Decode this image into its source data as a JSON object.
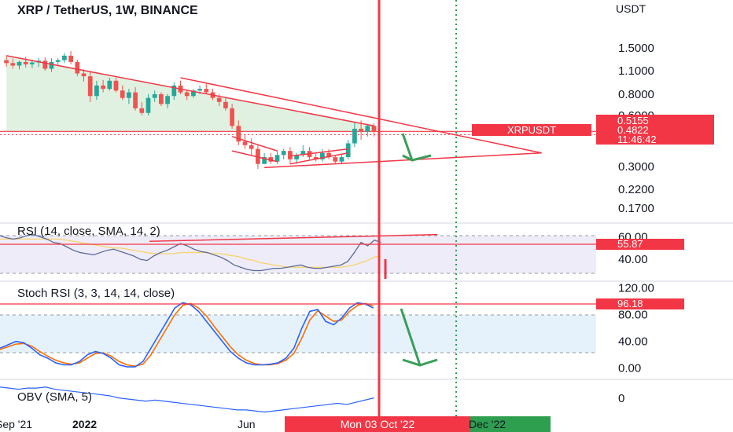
{
  "header": {
    "symbol_title": "XRP / TetherUS, 1W, BINANCE",
    "currency": "USDT"
  },
  "colors": {
    "up": "#26a69a",
    "down": "#ef5350",
    "accent_red": "#f23645",
    "rsi_line": "#5b6a9a",
    "rsi_sma": "#f5d46a",
    "stoch_k": "#2962ff",
    "stoch_d": "#ff6d00",
    "obv_line": "#2962ff",
    "green_dotted": "#2e9e4f",
    "rsi_band": "#e8e4f6",
    "stoch_band": "#e3f1fb"
  },
  "chart_data": [
    {
      "type": "candlestick",
      "title": "XRP / TetherUS, 1W, BINANCE",
      "ylabel": "USDT",
      "y_scale": "log",
      "y_ticks": [
        "1.5000",
        "1.1000",
        "0.8000",
        "0.6000",
        "0.3000",
        "0.2200",
        "0.1700"
      ],
      "x_ticks": [
        "Sep '21",
        "2022",
        "Jun",
        "Dec '22"
      ],
      "hover_x": "Mon 03 Oct '22",
      "symbol_tag": "XRPUSDT",
      "price_tags": [
        "0.5155",
        "0.4822",
        "11:46:42"
      ],
      "candles_ohlc": [
        [
          1.27,
          1.34,
          1.16,
          1.22
        ],
        [
          1.22,
          1.3,
          1.13,
          1.18
        ],
        [
          1.18,
          1.26,
          1.12,
          1.24
        ],
        [
          1.24,
          1.33,
          1.15,
          1.2
        ],
        [
          1.2,
          1.28,
          1.14,
          1.23
        ],
        [
          1.23,
          1.31,
          1.16,
          1.26
        ],
        [
          1.26,
          1.32,
          1.1,
          1.13
        ],
        [
          1.13,
          1.3,
          1.08,
          1.24
        ],
        [
          1.24,
          1.3,
          1.18,
          1.27
        ],
        [
          1.27,
          1.4,
          1.22,
          1.35
        ],
        [
          1.35,
          1.44,
          1.2,
          1.24
        ],
        [
          1.24,
          1.28,
          1.02,
          1.06
        ],
        [
          1.06,
          1.12,
          0.95,
          1.02
        ],
        [
          1.02,
          1.08,
          0.72,
          0.78
        ],
        [
          0.78,
          0.96,
          0.74,
          0.9
        ],
        [
          0.9,
          0.97,
          0.82,
          0.86
        ],
        [
          0.86,
          1.0,
          0.84,
          0.96
        ],
        [
          0.96,
          1.0,
          0.82,
          0.84
        ],
        [
          0.84,
          0.9,
          0.74,
          0.76
        ],
        [
          0.76,
          0.86,
          0.7,
          0.82
        ],
        [
          0.82,
          0.88,
          0.64,
          0.66
        ],
        [
          0.66,
          0.72,
          0.6,
          0.62
        ],
        [
          0.62,
          0.8,
          0.6,
          0.76
        ],
        [
          0.76,
          0.84,
          0.72,
          0.8
        ],
        [
          0.8,
          0.82,
          0.68,
          0.7
        ],
        [
          0.7,
          0.8,
          0.66,
          0.78
        ],
        [
          0.78,
          0.94,
          0.74,
          0.9
        ],
        [
          0.9,
          0.96,
          0.8,
          0.82
        ],
        [
          0.82,
          0.84,
          0.74,
          0.78
        ],
        [
          0.78,
          0.86,
          0.76,
          0.84
        ],
        [
          0.84,
          0.9,
          0.8,
          0.86
        ],
        [
          0.86,
          0.92,
          0.8,
          0.82
        ],
        [
          0.82,
          0.86,
          0.74,
          0.76
        ],
        [
          0.76,
          0.8,
          0.68,
          0.72
        ],
        [
          0.72,
          0.76,
          0.64,
          0.66
        ],
        [
          0.66,
          0.7,
          0.5,
          0.52
        ],
        [
          0.52,
          0.56,
          0.4,
          0.42
        ],
        [
          0.42,
          0.46,
          0.38,
          0.4
        ],
        [
          0.4,
          0.44,
          0.35,
          0.38
        ],
        [
          0.38,
          0.4,
          0.29,
          0.31
        ],
        [
          0.31,
          0.36,
          0.31,
          0.34
        ],
        [
          0.34,
          0.36,
          0.31,
          0.32
        ],
        [
          0.32,
          0.37,
          0.31,
          0.35
        ],
        [
          0.35,
          0.38,
          0.33,
          0.37
        ],
        [
          0.37,
          0.39,
          0.31,
          0.33
        ],
        [
          0.33,
          0.36,
          0.31,
          0.35
        ],
        [
          0.35,
          0.4,
          0.34,
          0.37
        ],
        [
          0.37,
          0.39,
          0.33,
          0.34
        ],
        [
          0.34,
          0.36,
          0.32,
          0.33
        ],
        [
          0.33,
          0.38,
          0.32,
          0.36
        ],
        [
          0.36,
          0.38,
          0.33,
          0.34
        ],
        [
          0.34,
          0.35,
          0.31,
          0.32
        ],
        [
          0.32,
          0.35,
          0.31,
          0.34
        ],
        [
          0.34,
          0.43,
          0.33,
          0.41
        ],
        [
          0.41,
          0.55,
          0.39,
          0.5
        ],
        [
          0.5,
          0.56,
          0.43,
          0.48
        ],
        [
          0.48,
          0.53,
          0.45,
          0.52
        ],
        [
          0.52,
          0.54,
          0.45,
          0.48
        ]
      ],
      "trendlines": [
        {
          "from": [
            0,
            1.35
          ],
          "to": [
            57,
            0.52
          ]
        },
        {
          "from": [
            27,
            1.0
          ],
          "to": [
            57,
            0.58
          ]
        },
        {
          "from": [
            57,
            0.58
          ],
          "to": [
            83,
            0.36
          ]
        },
        {
          "from": [
            40,
            0.295
          ],
          "to": [
            83,
            0.36
          ]
        },
        {
          "from": [
            35,
            0.45
          ],
          "to": [
            42,
            0.37
          ]
        },
        {
          "from": [
            35,
            0.37
          ],
          "to": [
            42,
            0.32
          ]
        },
        {
          "from": [
            44,
            0.31
          ],
          "to": [
            53,
            0.36
          ]
        },
        {
          "from": [
            44,
            0.345
          ],
          "to": [
            53,
            0.38
          ]
        }
      ],
      "support_level": 0.4822
    },
    {
      "type": "line",
      "title": "RSI (14, close, SMA, 14, 2)",
      "y_ticks": [
        "60.00",
        "40.00"
      ],
      "ylim": [
        22,
        68
      ],
      "band": [
        30,
        70
      ],
      "last_value_tag": "55.87",
      "series": [
        {
          "values": [
            61,
            59,
            58,
            59,
            61,
            62,
            60,
            58,
            55,
            54,
            51,
            48,
            46,
            45,
            44,
            46,
            48,
            49,
            47,
            45,
            43,
            40,
            39,
            43,
            46,
            48,
            51,
            54,
            52,
            49,
            47,
            46,
            44,
            42,
            39,
            35,
            33,
            31,
            30,
            30,
            31,
            32,
            32,
            33,
            34,
            35,
            33,
            32,
            32,
            33,
            34,
            35,
            38,
            46,
            55,
            52,
            57,
            55
          ]
        },
        {
          "values": [
            58,
            58,
            58,
            58,
            58,
            58,
            58,
            58,
            58,
            58,
            57,
            56,
            55,
            54,
            53,
            52,
            51,
            50,
            50,
            49,
            48,
            47,
            46,
            45,
            45,
            45,
            45,
            46,
            46,
            46,
            46,
            46,
            45,
            45,
            44,
            43,
            42,
            40,
            39,
            37,
            36,
            35,
            34,
            33,
            33,
            33,
            33,
            33,
            33,
            33,
            33,
            33,
            34,
            35,
            37,
            39,
            42,
            43
          ]
        }
      ],
      "drawn_lines": [
        {
          "from": [
            38,
            56
          ],
          "to": [
            107,
            62
          ]
        }
      ]
    },
    {
      "type": "line",
      "title": "Stoch RSI (3, 3, 14, 14, close)",
      "y_ticks": [
        "120.00",
        "80.00",
        "40.00",
        "0.00"
      ],
      "ylim": [
        -5,
        122
      ],
      "band": [
        20,
        80
      ],
      "last_value_tag": "96.18",
      "series": [
        {
          "values": [
            30,
            35,
            40,
            38,
            30,
            20,
            15,
            8,
            5,
            5,
            10,
            20,
            25,
            22,
            15,
            5,
            2,
            2,
            10,
            30,
            50,
            70,
            90,
            98,
            95,
            85,
            70,
            55,
            40,
            25,
            15,
            8,
            5,
            5,
            6,
            8,
            15,
            30,
            60,
            85,
            88,
            70,
            65,
            75,
            90,
            98,
            96,
            90
          ]
        },
        {
          "values": [
            28,
            32,
            36,
            37,
            33,
            25,
            18,
            12,
            8,
            6,
            8,
            15,
            22,
            23,
            18,
            10,
            5,
            3,
            6,
            20,
            40,
            60,
            80,
            94,
            97,
            90,
            78,
            62,
            47,
            32,
            20,
            12,
            7,
            5,
            5,
            7,
            12,
            22,
            45,
            72,
            86,
            78,
            70,
            72,
            85,
            94,
            97,
            93
          ]
        }
      ]
    },
    {
      "type": "line",
      "title": "OBV (SMA, 5)",
      "y_ticks": [
        "0"
      ],
      "series": [
        {
          "values": [
            0,
            -1,
            -2,
            -1,
            -1,
            0,
            -2,
            -3,
            -4,
            -5,
            -6,
            -7,
            -8,
            -10,
            -11,
            -12,
            -13,
            -12,
            -13,
            -14,
            -15,
            -16,
            -17,
            -18,
            -19,
            -20,
            -21,
            -21,
            -22,
            -23,
            -22,
            -21,
            -20,
            -19,
            -18,
            -17,
            -16,
            -15,
            -16,
            -14,
            -12,
            -10
          ]
        }
      ]
    }
  ]
}
